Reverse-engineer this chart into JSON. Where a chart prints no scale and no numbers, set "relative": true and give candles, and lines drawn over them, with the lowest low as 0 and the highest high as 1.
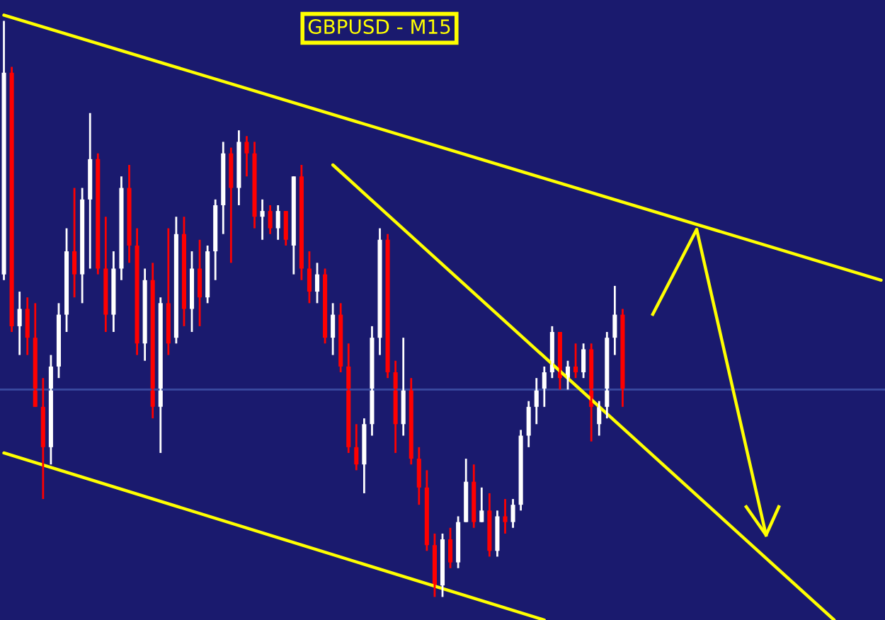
{
  "chart_data": {
    "type": "candlestick",
    "title": "GBPUSD - M15",
    "relative": true,
    "categories": [
      null,
      null,
      null,
      null,
      null,
      null,
      null,
      null,
      null,
      null,
      null,
      null,
      null,
      null,
      null,
      null,
      null,
      null,
      null,
      null,
      null,
      null,
      null,
      null,
      null,
      null,
      null,
      null,
      null,
      null,
      null,
      null,
      null,
      null,
      null,
      null,
      null,
      null,
      null,
      null,
      null,
      null,
      null,
      null,
      null,
      null,
      null,
      null,
      null,
      null,
      null,
      null,
      null,
      null,
      null,
      null,
      null,
      null,
      null,
      null,
      null,
      null,
      null,
      null,
      null,
      null,
      null,
      null,
      null,
      null,
      null,
      null,
      null,
      null,
      null,
      null,
      null,
      null,
      null,
      null,
      null,
      null,
      null,
      null,
      null,
      null,
      null,
      null,
      null,
      null,
      null,
      null,
      null,
      null,
      null,
      null,
      null,
      null,
      null,
      null,
      null,
      null,
      null,
      null,
      null,
      null,
      null,
      null,
      null,
      null,
      null,
      null,
      null
    ],
    "ohlc": [
      [
        0.56,
        1.0,
        0.55,
        0.91
      ],
      [
        0.91,
        0.92,
        0.46,
        0.47
      ],
      [
        0.47,
        0.53,
        0.42,
        0.5
      ],
      [
        0.5,
        0.52,
        0.42,
        0.45
      ],
      [
        0.45,
        0.51,
        0.33,
        0.33
      ],
      [
        0.33,
        0.38,
        0.17,
        0.26
      ],
      [
        0.26,
        0.42,
        0.23,
        0.4
      ],
      [
        0.4,
        0.51,
        0.38,
        0.49
      ],
      [
        0.49,
        0.64,
        0.46,
        0.6
      ],
      [
        0.6,
        0.71,
        0.52,
        0.56
      ],
      [
        0.56,
        0.71,
        0.51,
        0.69
      ],
      [
        0.69,
        0.84,
        0.57,
        0.76
      ],
      [
        0.76,
        0.77,
        0.56,
        0.57
      ],
      [
        0.57,
        0.66,
        0.46,
        0.49
      ],
      [
        0.49,
        0.6,
        0.46,
        0.57
      ],
      [
        0.57,
        0.73,
        0.55,
        0.71
      ],
      [
        0.71,
        0.75,
        0.58,
        0.61
      ],
      [
        0.61,
        0.64,
        0.42,
        0.44
      ],
      [
        0.44,
        0.57,
        0.41,
        0.55
      ],
      [
        0.55,
        0.58,
        0.31,
        0.33
      ],
      [
        0.33,
        0.52,
        0.25,
        0.51
      ],
      [
        0.51,
        0.64,
        0.42,
        0.44
      ],
      [
        0.45,
        0.66,
        0.44,
        0.63
      ],
      [
        0.63,
        0.66,
        0.47,
        0.5
      ],
      [
        0.5,
        0.6,
        0.46,
        0.57
      ],
      [
        0.57,
        0.62,
        0.47,
        0.52
      ],
      [
        0.52,
        0.61,
        0.51,
        0.6
      ],
      [
        0.6,
        0.69,
        0.55,
        0.68
      ],
      [
        0.68,
        0.79,
        0.63,
        0.77
      ],
      [
        0.77,
        0.78,
        0.58,
        0.71
      ],
      [
        0.71,
        0.81,
        0.68,
        0.79
      ],
      [
        0.79,
        0.8,
        0.73,
        0.77
      ],
      [
        0.77,
        0.79,
        0.64,
        0.66
      ],
      [
        0.66,
        0.69,
        0.62,
        0.67
      ],
      [
        0.67,
        0.68,
        0.63,
        0.64
      ],
      [
        0.64,
        0.68,
        0.62,
        0.67
      ],
      [
        0.67,
        0.67,
        0.61,
        0.62
      ],
      [
        0.61,
        0.73,
        0.56,
        0.73
      ],
      [
        0.73,
        0.75,
        0.55,
        0.57
      ],
      [
        0.57,
        0.6,
        0.51,
        0.53
      ],
      [
        0.53,
        0.58,
        0.51,
        0.56
      ],
      [
        0.56,
        0.57,
        0.44,
        0.45
      ],
      [
        0.45,
        0.51,
        0.42,
        0.49
      ],
      [
        0.49,
        0.51,
        0.39,
        0.4
      ],
      [
        0.4,
        0.44,
        0.25,
        0.26
      ],
      [
        0.26,
        0.3,
        0.22,
        0.23
      ],
      [
        0.23,
        0.31,
        0.18,
        0.3
      ],
      [
        0.3,
        0.47,
        0.28,
        0.45
      ],
      [
        0.45,
        0.64,
        0.42,
        0.62
      ],
      [
        0.62,
        0.63,
        0.38,
        0.39
      ],
      [
        0.39,
        0.41,
        0.25,
        0.3
      ],
      [
        0.3,
        0.45,
        0.28,
        0.36
      ],
      [
        0.36,
        0.38,
        0.23,
        0.24
      ],
      [
        0.24,
        0.26,
        0.16,
        0.19
      ],
      [
        0.19,
        0.22,
        0.08,
        0.09
      ],
      [
        0.09,
        0.11,
        0.0,
        0.02
      ],
      [
        0.02,
        0.11,
        0.0,
        0.1
      ],
      [
        0.1,
        0.12,
        0.05,
        0.06
      ],
      [
        0.06,
        0.14,
        0.05,
        0.13
      ],
      [
        0.13,
        0.24,
        0.13,
        0.2
      ],
      [
        0.2,
        0.23,
        0.12,
        0.13
      ],
      [
        0.13,
        0.19,
        0.13,
        0.15
      ],
      [
        0.15,
        0.18,
        0.07,
        0.08
      ],
      [
        0.08,
        0.15,
        0.07,
        0.14
      ],
      [
        0.14,
        0.17,
        0.11,
        0.13
      ],
      [
        0.13,
        0.17,
        0.12,
        0.16
      ],
      [
        0.16,
        0.29,
        0.15,
        0.28
      ],
      [
        0.28,
        0.34,
        0.26,
        0.33
      ],
      [
        0.33,
        0.38,
        0.3,
        0.36
      ],
      [
        0.36,
        0.4,
        0.33,
        0.39
      ],
      [
        0.39,
        0.47,
        0.38,
        0.46
      ],
      [
        0.46,
        0.46,
        0.36,
        0.38
      ],
      [
        0.38,
        0.41,
        0.36,
        0.4
      ],
      [
        0.4,
        0.44,
        0.38,
        0.39
      ],
      [
        0.39,
        0.44,
        0.38,
        0.43
      ],
      [
        0.43,
        0.44,
        0.27,
        0.33
      ],
      [
        0.3,
        0.34,
        0.28,
        0.33
      ],
      [
        0.33,
        0.46,
        0.31,
        0.45
      ],
      [
        0.45,
        0.54,
        0.42,
        0.49
      ],
      [
        0.49,
        0.5,
        0.33,
        0.36
      ],
      null,
      null,
      null,
      null,
      null,
      null,
      null,
      null,
      null,
      null,
      null,
      null,
      null,
      null,
      null,
      null,
      null,
      null,
      null,
      null,
      null,
      null,
      null,
      null,
      null,
      null,
      null,
      null,
      null,
      null,
      null,
      null,
      null
    ],
    "series": [
      {
        "type": "line",
        "color": "#ffff00",
        "values": [
          1.01,
          null,
          null,
          null,
          null,
          null,
          null,
          null,
          null,
          null,
          null,
          null,
          null,
          null,
          null,
          null,
          null,
          null,
          null,
          null,
          null,
          null,
          null,
          null,
          null,
          null,
          null,
          null,
          null,
          null,
          null,
          null,
          null,
          null,
          null,
          null,
          null,
          null,
          null,
          null,
          null,
          null,
          null,
          null,
          null,
          null,
          null,
          null,
          null,
          null,
          null,
          null,
          null,
          null,
          null,
          null,
          null,
          null,
          null,
          null,
          null,
          null,
          null,
          null,
          null,
          null,
          null,
          null,
          null,
          null,
          null,
          null,
          null,
          null,
          null,
          null,
          null,
          null,
          null,
          null,
          null,
          null,
          null,
          null,
          null,
          null,
          null,
          null,
          null,
          null,
          null,
          null,
          null,
          null,
          null,
          null,
          null,
          null,
          null,
          null,
          null,
          null,
          null,
          null,
          null,
          null,
          null,
          null,
          null,
          null,
          null,
          null,
          0.55
        ]
      },
      {
        "type": "line",
        "color": "#ffff00",
        "values": [
          0.25,
          null,
          null,
          null,
          null,
          null,
          null,
          null,
          null,
          null,
          null,
          null,
          null,
          null,
          null,
          null,
          null,
          null,
          null,
          null,
          null,
          null,
          null,
          null,
          null,
          null,
          null,
          null,
          null,
          null,
          null,
          null,
          null,
          null,
          null,
          null,
          null,
          null,
          null,
          null,
          null,
          null,
          null,
          null,
          null,
          null,
          null,
          null,
          null,
          null,
          null,
          null,
          null,
          null,
          null,
          null,
          null,
          null,
          null,
          null,
          null,
          null,
          null,
          null,
          null,
          null,
          null,
          null,
          null,
          -0.04,
          null,
          null,
          null,
          null,
          null,
          null,
          null,
          null,
          null,
          null,
          null,
          null,
          null,
          null,
          null,
          null,
          null,
          null,
          null,
          null,
          null,
          null,
          null,
          null,
          null,
          null,
          null,
          null,
          null,
          null,
          null,
          null,
          null,
          null,
          null,
          null,
          null,
          null,
          null,
          null,
          null,
          null,
          null
        ]
      },
      {
        "type": "line",
        "color": "#ffff00",
        "values": [
          null,
          null,
          null,
          null,
          null,
          null,
          null,
          null,
          null,
          null,
          null,
          null,
          null,
          null,
          null,
          null,
          null,
          null,
          null,
          null,
          null,
          null,
          null,
          null,
          null,
          null,
          null,
          null,
          null,
          null,
          null,
          null,
          null,
          null,
          null,
          null,
          null,
          null,
          null,
          null,
          null,
          null,
          0.75,
          null,
          null,
          null,
          null,
          null,
          null,
          null,
          null,
          null,
          null,
          null,
          null,
          null,
          null,
          null,
          null,
          null,
          null,
          null,
          null,
          null,
          null,
          null,
          null,
          null,
          null,
          null,
          null,
          null,
          null,
          null,
          null,
          null,
          null,
          null,
          null,
          null,
          null,
          null,
          null,
          null,
          null,
          null,
          null,
          null,
          null,
          null,
          null,
          null,
          null,
          null,
          null,
          null,
          null,
          null,
          null,
          null,
          null,
          null,
          null,
          null,
          null,
          null,
          -0.04,
          null,
          null,
          null,
          null,
          null,
          null
        ]
      }
    ],
    "ref_lines": [
      {
        "axis": "y",
        "value": 0.36,
        "color": "#3a4aa0"
      }
    ]
  }
}
